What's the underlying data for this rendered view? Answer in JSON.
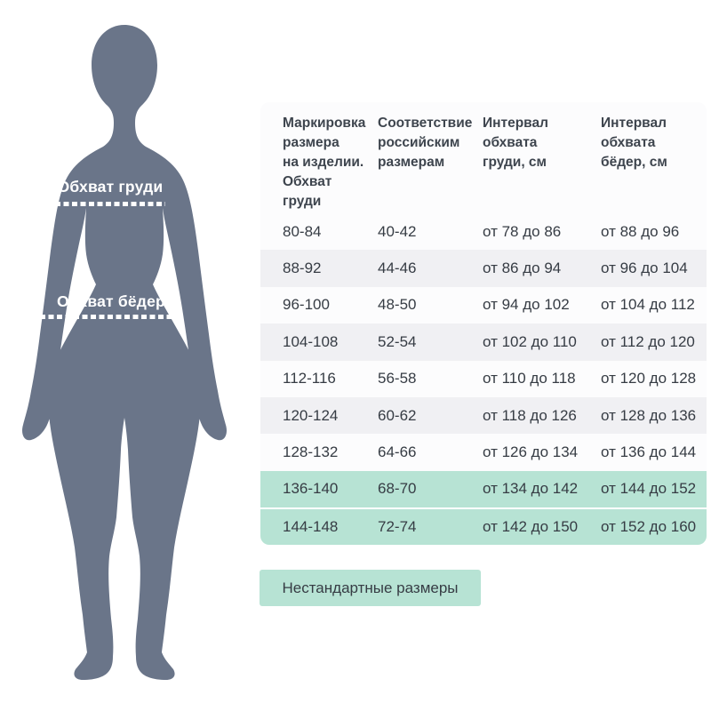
{
  "figure": {
    "chest_label": "Обхват груди",
    "hips_label": "Обхват бёдер"
  },
  "table": {
    "headers": [
      "Маркировка\nразмера\nна изделии.\nОбхват\nгруди",
      "Соответствие\nроссийским\nразмерам",
      "Интервал\nобхвата\nгруди, см",
      "Интервал\nобхвата\nбёдер, см"
    ],
    "rows": [
      {
        "marking": "80-84",
        "russian": "40-42",
        "chest": "от 78 до 86",
        "hips": "от 88 до 96",
        "highlight": false
      },
      {
        "marking": "88-92",
        "russian": "44-46",
        "chest": "от 86 до 94",
        "hips": "от 96 до 104",
        "highlight": false
      },
      {
        "marking": "96-100",
        "russian": "48-50",
        "chest": "от 94 до 102",
        "hips": "от 104 до 112",
        "highlight": false
      },
      {
        "marking": "104-108",
        "russian": "52-54",
        "chest": "от 102 до 110",
        "hips": "от 112 до 120",
        "highlight": false
      },
      {
        "marking": "112-116",
        "russian": "56-58",
        "chest": "от 110 до 118",
        "hips": "от 120 до 128",
        "highlight": false
      },
      {
        "marking": "120-124",
        "russian": "60-62",
        "chest": "от 118 до 126",
        "hips": "от 128 до 136",
        "highlight": false
      },
      {
        "marking": "128-132",
        "russian": "64-66",
        "chest": "от 126 до 134",
        "hips": "от 136 до 144",
        "highlight": false
      },
      {
        "marking": "136-140",
        "russian": "68-70",
        "chest": "от 134 до 142",
        "hips": "от 144 до 152",
        "highlight": true
      },
      {
        "marking": "144-148",
        "russian": "72-74",
        "chest": "от 142 до 150",
        "hips": "от 152 до 160",
        "highlight": true
      }
    ]
  },
  "legend": {
    "nonstandard_label": "Нестандартные размеры"
  },
  "colors": {
    "accent_teal": "#b7e3d4",
    "row_alt": "#f0f0f3",
    "silhouette": "#6a7589",
    "text_dark": "#363c44",
    "text_header": "#3e454e",
    "panel_bg": "#fcfcfd"
  }
}
